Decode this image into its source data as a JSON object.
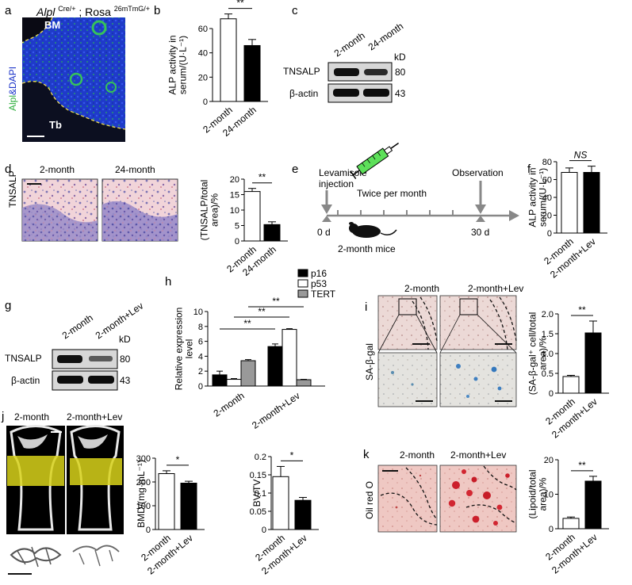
{
  "panels": {
    "a": {
      "letter": "a",
      "title_gene": "Alpl",
      "title_super1": "Cre/+",
      "title_sep": "; Rosa",
      "title_super2": "26mTmG/+",
      "ylabel_green": "Alpl",
      "ylabel_blue": "&DAPI",
      "label_bm": "BM",
      "label_tb": "Tb"
    },
    "b": {
      "letter": "b"
    },
    "c": {
      "letter": "c",
      "lanes": [
        "2-month",
        "24-month"
      ],
      "kd_label": "kD",
      "rows": [
        {
          "name": "TNSALP",
          "kd": "80"
        },
        {
          "name": "β-actin",
          "kd": "43"
        }
      ]
    },
    "d": {
      "letter": "d",
      "row_label": "TNSALP",
      "img_titles": [
        "2-month",
        "24-month"
      ]
    },
    "e": {
      "letter": "e",
      "injection": "Levamisole injection",
      "injection_l1": "Levamisole",
      "injection_l2": "injection",
      "observation": "Observation",
      "frequency": "Twice per month",
      "start": "0 d",
      "end": "30 d",
      "mice": "2-month mice"
    },
    "f": {
      "letter": "f"
    },
    "g": {
      "letter": "g",
      "lanes": [
        "2-month",
        "2-month+Lev"
      ],
      "kd_label": "kD",
      "rows": [
        {
          "name": "TNSALP",
          "kd": "80"
        },
        {
          "name": "β-actin",
          "kd": "43"
        }
      ]
    },
    "h": {
      "letter": "h"
    },
    "i": {
      "letter": "i",
      "row_label": "SA-β-gal",
      "img_titles": [
        "2-month",
        "2-month+Lev"
      ]
    },
    "j": {
      "letter": "j",
      "img_titles": [
        "2-month",
        "2-month+Lev"
      ]
    },
    "k": {
      "letter": "k",
      "row_label": "Oil red O",
      "img_titles": [
        "2-month",
        "2-month+Lev"
      ]
    }
  },
  "chart_data": [
    {
      "id": "b",
      "type": "bar",
      "categories": [
        "2-month",
        "24-month"
      ],
      "values": [
        68,
        46
      ],
      "errors": [
        4,
        5
      ],
      "colors": [
        "#ffffff",
        "#000000"
      ],
      "ylabel_lines": [
        "ALP activity in",
        "serum/(U·L⁻¹)"
      ],
      "ylim": [
        0,
        60
      ],
      "yticks": [
        "0",
        "20",
        "40",
        "60"
      ],
      "ytick_values": [
        0,
        20,
        40,
        60
      ],
      "significance": "**"
    },
    {
      "id": "d",
      "type": "bar",
      "categories": [
        "2-month",
        "24-month"
      ],
      "values": [
        16,
        5.3
      ],
      "errors": [
        1.0,
        0.9
      ],
      "colors": [
        "#ffffff",
        "#000000"
      ],
      "ylabel_lines": [
        "(TNSALP/total",
        "area)/%"
      ],
      "ylim": [
        0,
        20
      ],
      "yticks": [
        "0",
        "5",
        "10",
        "15",
        "20"
      ],
      "ytick_values": [
        0,
        5,
        10,
        15,
        20
      ],
      "significance": "**"
    },
    {
      "id": "f",
      "type": "bar",
      "categories": [
        "2-month",
        "2-month+Lev"
      ],
      "values": [
        68,
        68
      ],
      "errors": [
        5,
        7
      ],
      "colors": [
        "#ffffff",
        "#000000"
      ],
      "ylabel_lines": [
        "ALP activity in",
        "serum/(U·L⁻¹)"
      ],
      "ylim": [
        0,
        80
      ],
      "yticks": [
        "0",
        "20",
        "40",
        "60",
        "80"
      ],
      "ytick_values": [
        0,
        20,
        40,
        60,
        80
      ],
      "significance": "NS"
    },
    {
      "id": "h",
      "type": "bar",
      "categories": [
        "2-month",
        "2-month+Lev"
      ],
      "series": [
        {
          "name": "p16",
          "values": [
            1.5,
            5.3
          ],
          "errors": [
            0.5,
            0.35
          ],
          "color": "#000000"
        },
        {
          "name": "p53",
          "values": [
            0.9,
            7.6
          ],
          "errors": [
            0.1,
            0.1
          ],
          "color": "#ffffff"
        },
        {
          "name": "TERT",
          "values": [
            3.4,
            0.85
          ],
          "errors": [
            0.15,
            0.05
          ],
          "color": "#999999"
        }
      ],
      "ylabel_lines": [
        "Relative expression",
        "level"
      ],
      "ylim": [
        0,
        10
      ],
      "yticks": [
        "0",
        "2",
        "4",
        "6",
        "8",
        "10"
      ],
      "ytick_values": [
        0,
        2,
        4,
        6,
        8,
        10
      ],
      "significance": [
        "**",
        "**",
        "**"
      ],
      "legend_position": "top"
    },
    {
      "id": "i",
      "type": "bar",
      "categories": [
        "2-month",
        "2-month+Lev"
      ],
      "values": [
        0.42,
        1.52
      ],
      "errors": [
        0.03,
        0.3
      ],
      "colors": [
        "#ffffff",
        "#000000"
      ],
      "ylabel_lines": [
        "(SA-β-gal⁺ cell/total",
        "area)/%"
      ],
      "ylim": [
        0,
        2.0
      ],
      "yticks": [
        "0",
        "0.5",
        "1.0",
        "1.5",
        "2.0"
      ],
      "ytick_values": [
        0,
        0.5,
        1.0,
        1.5,
        2.0
      ],
      "significance": "**"
    },
    {
      "id": "j1",
      "type": "bar",
      "categories": [
        "2-month",
        "2-month+Lev"
      ],
      "values": [
        235,
        195
      ],
      "errors": [
        12,
        8
      ],
      "colors": [
        "#ffffff",
        "#000000"
      ],
      "ylabel_lines": [
        "BMD/(mg·mL⁻¹)"
      ],
      "ylim": [
        0,
        300
      ],
      "yticks": [
        "0",
        "100",
        "200",
        "300"
      ],
      "ytick_values": [
        0,
        100,
        200,
        300
      ],
      "significance": "*"
    },
    {
      "id": "j2",
      "type": "bar",
      "categories": [
        "2-month",
        "2-month+Lev"
      ],
      "values": [
        0.145,
        0.08
      ],
      "errors": [
        0.028,
        0.008
      ],
      "colors": [
        "#ffffff",
        "#000000"
      ],
      "ylabel_lines": [
        "BV/TV"
      ],
      "ylim": [
        0,
        0.2
      ],
      "yticks": [
        "0",
        "0.05",
        "0.1",
        "0.15",
        "0.2"
      ],
      "ytick_values": [
        0,
        0.05,
        0.1,
        0.15,
        0.2
      ],
      "significance": "*"
    },
    {
      "id": "k",
      "type": "bar",
      "categories": [
        "2-month",
        "2-month+Lev"
      ],
      "values": [
        3,
        13.8
      ],
      "errors": [
        0.4,
        1.4
      ],
      "colors": [
        "#ffffff",
        "#000000"
      ],
      "ylabel_lines": [
        "(Lipoid/total",
        "area)/%"
      ],
      "ylim": [
        0,
        20
      ],
      "yticks": [
        "0",
        "10",
        "20"
      ],
      "ytick_values": [
        0,
        10,
        20
      ],
      "significance": "**"
    }
  ]
}
